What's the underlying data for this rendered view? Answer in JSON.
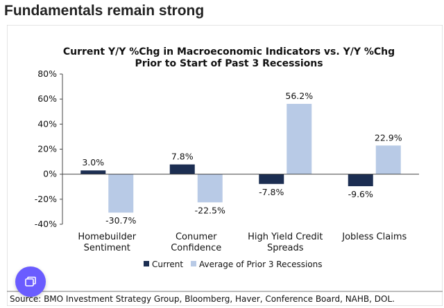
{
  "page": {
    "heading": "Fundamentals remain strong"
  },
  "chart_data": {
    "type": "bar",
    "title_line1": "Current Y/Y %Chg in Macroeconomic Indicators vs. Y/Y %Chg",
    "title_line2": "Prior to Start of Past 3 Recessions",
    "categories": [
      [
        "Homebuilder",
        "Sentiment"
      ],
      [
        "Conumer",
        "Confidence"
      ],
      [
        "High Yield Credit",
        "Spreads"
      ],
      [
        "Jobless Claims"
      ]
    ],
    "series": [
      {
        "name": "Current",
        "values": [
          3.0,
          7.8,
          -7.8,
          -9.6
        ],
        "labels": [
          "3.0%",
          "7.8%",
          "-7.8%",
          "-9.6%"
        ],
        "color": "#1c2e52"
      },
      {
        "name": "Average of Prior 3 Recessions",
        "values": [
          -30.7,
          -22.5,
          56.2,
          22.9
        ],
        "labels": [
          "-30.7%",
          "-22.5%",
          "56.2%",
          "22.9%"
        ],
        "color": "#b8cae6"
      }
    ],
    "ylim": [
      -40,
      80
    ],
    "yticks": [
      80,
      60,
      40,
      20,
      0,
      -20,
      -40
    ],
    "ytick_labels": [
      "80%",
      "60%",
      "40%",
      "20%",
      "0%",
      "-20%",
      "-40%"
    ],
    "grid": false,
    "legend_position": "bottom",
    "source": "Source: BMO Investment Strategy Group, Bloomberg, Haver, Conference Board, NAHB, DOL."
  },
  "fab": {
    "icon": "copy-window-icon",
    "color": "#6a5cff"
  }
}
